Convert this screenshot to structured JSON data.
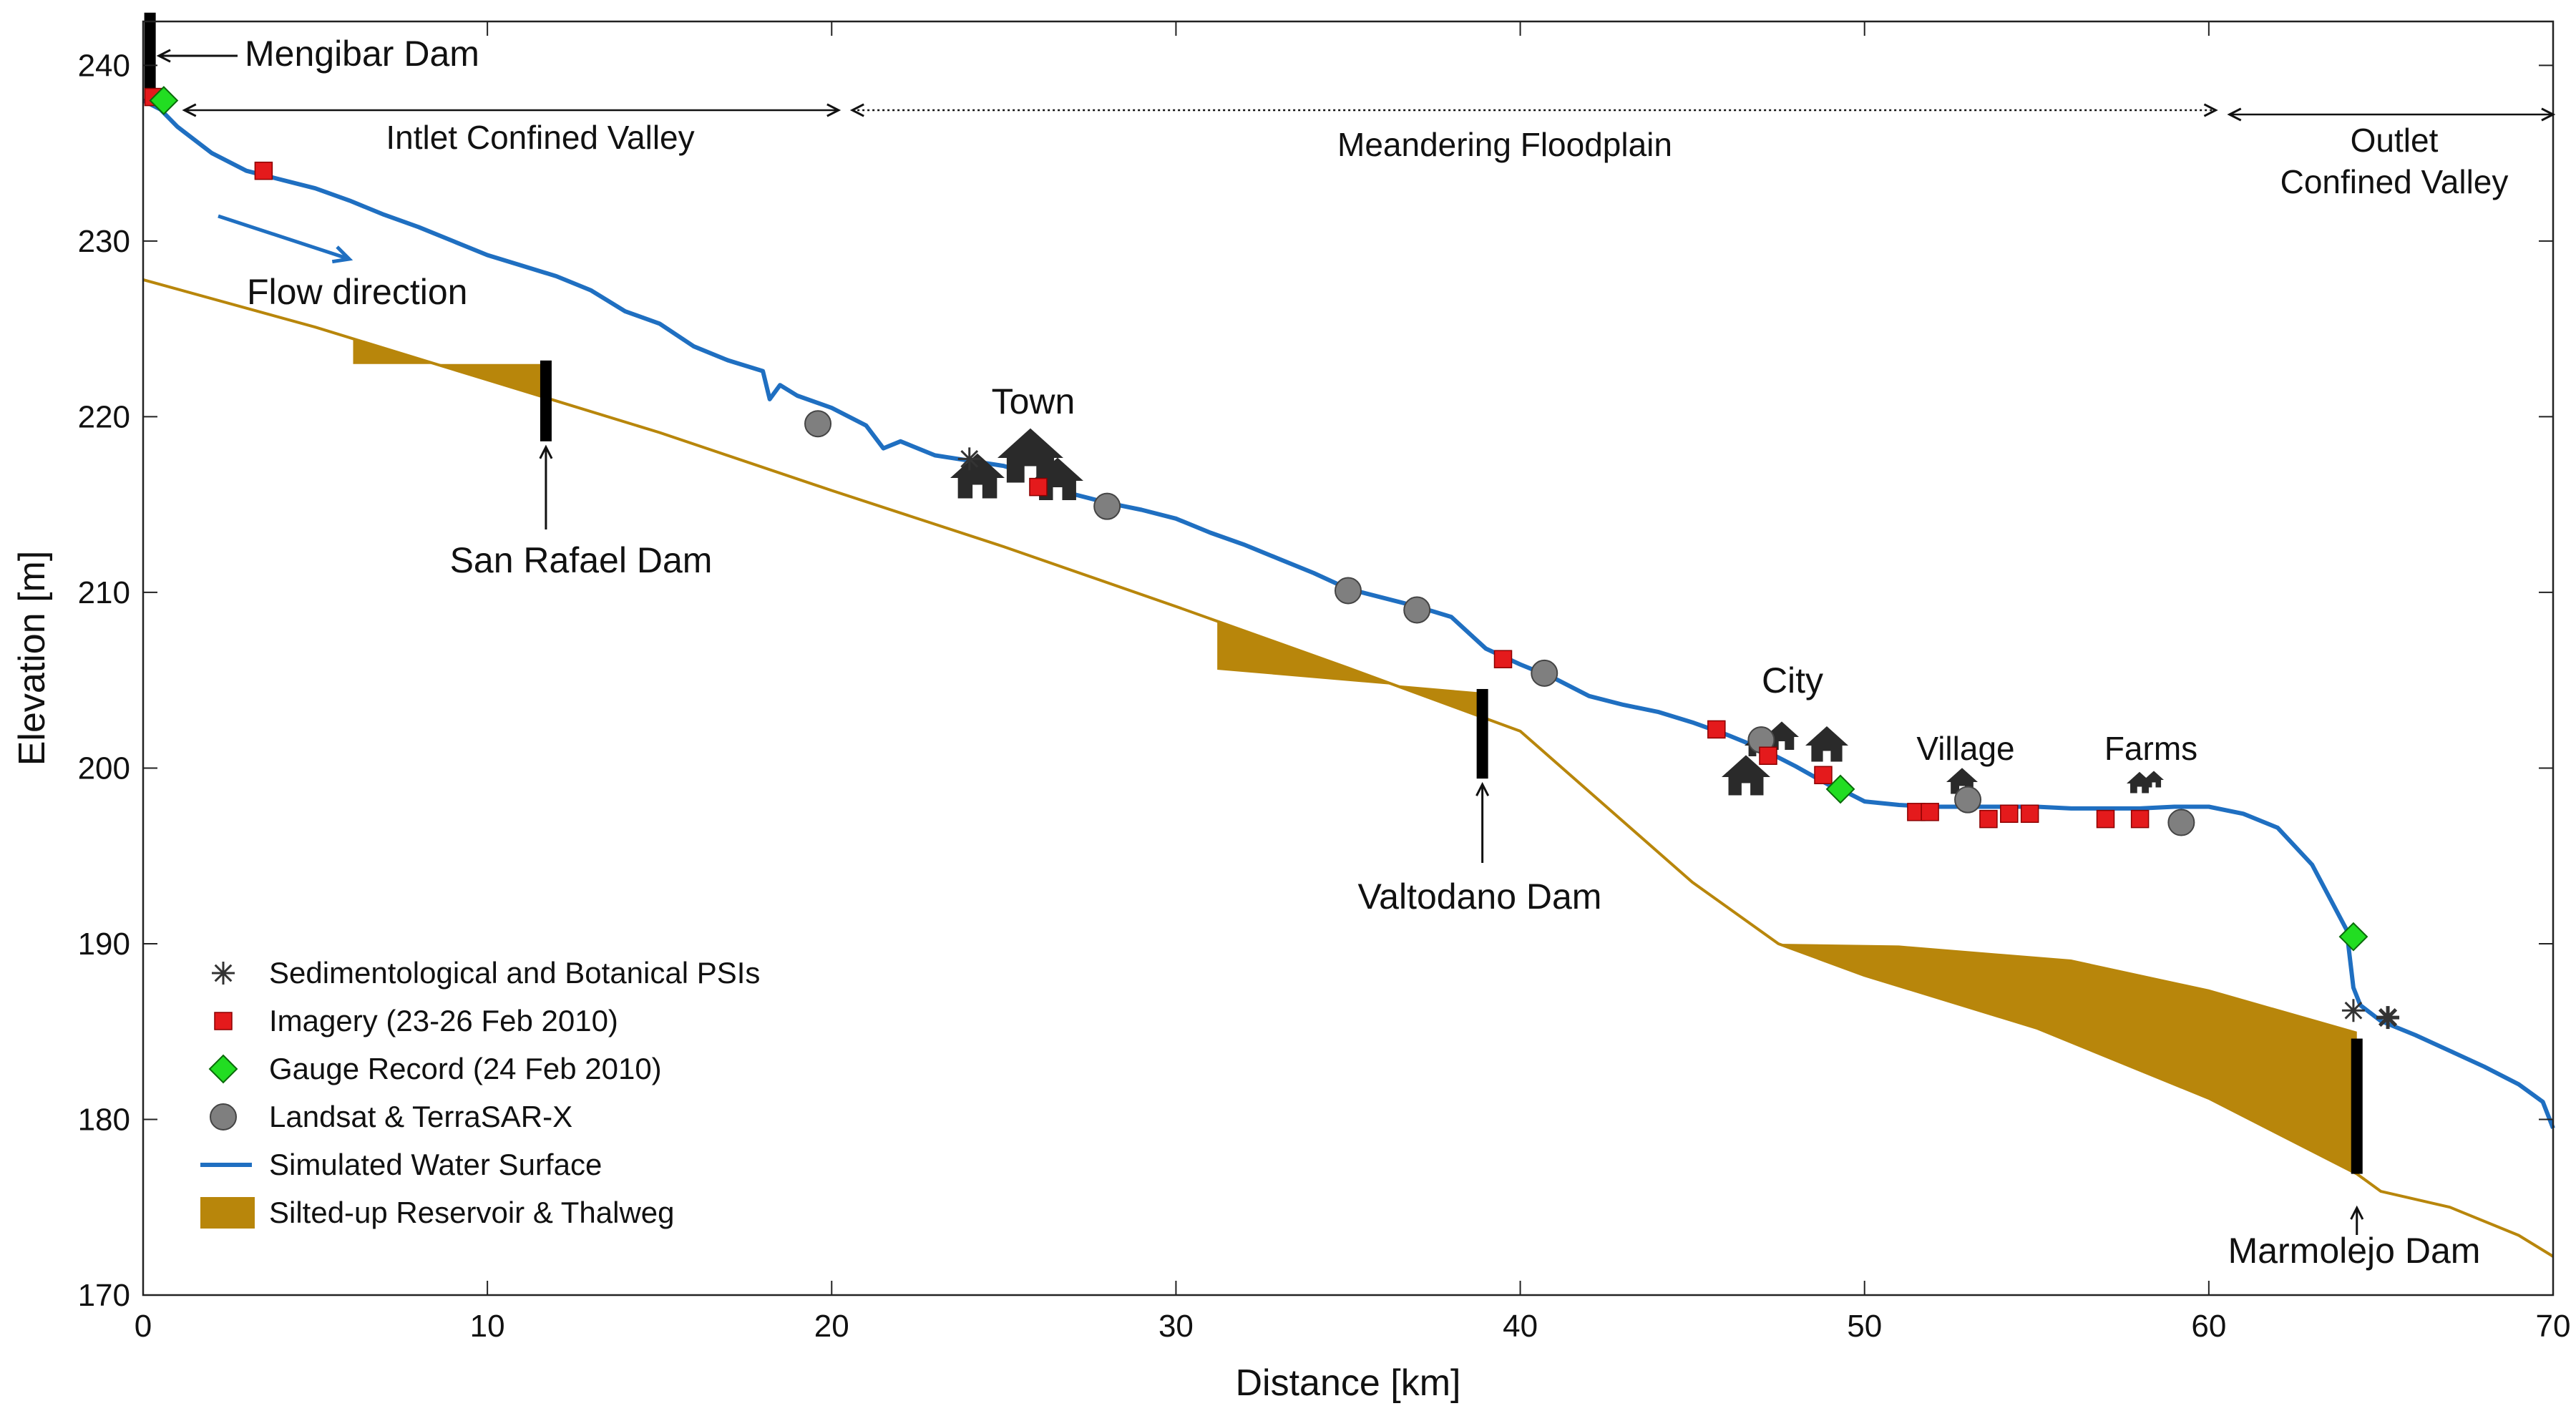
{
  "chart_data": {
    "type": "line",
    "xlabel": "Distance [km]",
    "ylabel": "Elevation [m]",
    "xlim": [
      0,
      70
    ],
    "ylim": [
      170,
      242.5
    ],
    "xticks": [
      0,
      10,
      20,
      30,
      40,
      50,
      60,
      70
    ],
    "yticks": [
      170,
      180,
      190,
      200,
      210,
      220,
      230,
      240
    ],
    "grid": false,
    "series": [
      {
        "name": "Simulated Water Surface",
        "color": "#1f6fc1",
        "x": [
          0,
          0.5,
          1,
          2,
          3,
          4,
          5,
          6,
          7,
          8,
          9,
          10,
          11,
          12,
          13,
          14,
          15,
          16,
          17,
          18,
          18.2,
          18.5,
          19,
          20,
          21,
          21.5,
          22,
          23,
          24,
          25,
          26,
          27,
          28,
          29,
          30,
          31,
          32,
          33,
          34,
          35,
          36,
          37,
          38,
          39,
          40,
          41,
          42,
          43,
          44,
          45,
          46,
          47,
          48,
          49,
          49.5,
          50,
          51,
          52,
          53,
          54,
          55,
          56,
          57,
          58,
          59,
          60,
          61,
          62,
          63,
          64,
          64.2,
          64.4,
          65,
          66,
          67,
          68,
          69,
          69.7,
          70
        ],
        "y": [
          238,
          237.5,
          236.5,
          235,
          234,
          233.5,
          233,
          232.3,
          231.5,
          230.8,
          230,
          229.2,
          228.6,
          228,
          227.2,
          226,
          225.3,
          224,
          223.2,
          222.6,
          221,
          221.8,
          221.2,
          220.5,
          219.5,
          218.2,
          218.6,
          217.8,
          217.5,
          217.2,
          216.6,
          215.6,
          215.1,
          214.7,
          214.2,
          213.4,
          212.7,
          211.9,
          211.1,
          210.2,
          209.7,
          209.2,
          208.6,
          206.8,
          205.9,
          205.1,
          204.1,
          203.6,
          203.2,
          202.6,
          201.9,
          201.1,
          200.1,
          199,
          198.6,
          198.1,
          197.9,
          197.8,
          197.8,
          197.8,
          197.8,
          197.7,
          197.7,
          197.7,
          197.8,
          197.8,
          197.4,
          196.6,
          194.5,
          190.8,
          187.5,
          186.5,
          185.6,
          184.8,
          183.9,
          183,
          182,
          181,
          179.5
        ]
      },
      {
        "name": "Thalweg",
        "color": "#b8860b",
        "x": [
          0,
          5,
          10,
          15,
          20,
          25,
          30,
          35,
          40,
          45,
          47.5,
          50,
          55,
          60,
          64.3,
          65,
          67,
          69,
          70
        ],
        "y": [
          227.8,
          225.1,
          222.1,
          219.1,
          215.8,
          212.6,
          209.2,
          205.7,
          202.1,
          193.5,
          190,
          188.2,
          185.2,
          181.2,
          176.9,
          175.9,
          175,
          173.4,
          172.2
        ]
      }
    ],
    "reservoirs": [
      {
        "name": "San Rafael reservoir",
        "points": [
          [
            6.1,
            223
          ],
          [
            11.7,
            223
          ],
          [
            11.7,
            218.6
          ]
        ]
      },
      {
        "name": "Valtodano reservoir",
        "points": [
          [
            31.2,
            205.6
          ],
          [
            38.9,
            204.3
          ],
          [
            38.9,
            199.4
          ]
        ]
      },
      {
        "name": "Marmolejo reservoir",
        "points": [
          [
            47.5,
            190
          ],
          [
            51,
            189.9
          ],
          [
            56,
            189.1
          ],
          [
            60,
            187.4
          ],
          [
            64.3,
            185
          ]
        ]
      }
    ],
    "dams": [
      {
        "name": "Mengibar Dam",
        "x": 0.2,
        "y_bottom": 238,
        "y_top": 243
      },
      {
        "name": "San Rafael Dam",
        "x": 11.7,
        "y_bottom": 218.6,
        "y_top": 223.2
      },
      {
        "name": "Valtodano Dam",
        "x": 38.9,
        "y_bottom": 199.4,
        "y_top": 204.5
      },
      {
        "name": "Marmolejo Dam",
        "x": 64.3,
        "y_bottom": 176.9,
        "y_top": 184.6
      }
    ],
    "points": {
      "psi": [
        [
          24,
          217.6
        ],
        [
          64.2,
          186.2
        ],
        [
          65.2,
          185.8
        ]
      ],
      "imagery": [
        [
          0.3,
          238.2
        ],
        [
          3.5,
          234
        ],
        [
          26,
          216
        ],
        [
          39.5,
          206.2
        ],
        [
          45.7,
          202.2
        ],
        [
          47.2,
          200.7
        ],
        [
          48.8,
          199.6
        ],
        [
          51.5,
          197.5
        ],
        [
          51.9,
          197.5
        ],
        [
          53.6,
          197.1
        ],
        [
          54.2,
          197.4
        ],
        [
          54.8,
          197.4
        ],
        [
          57,
          197.1
        ],
        [
          58,
          197.1
        ]
      ],
      "gauge": [
        [
          0.6,
          238
        ],
        [
          49.3,
          198.8
        ],
        [
          64.2,
          190.4
        ]
      ],
      "landsat": [
        [
          19.6,
          219.6
        ],
        [
          28,
          214.9
        ],
        [
          35,
          210.1
        ],
        [
          37,
          209
        ],
        [
          40.7,
          205.4
        ],
        [
          47,
          201.6
        ],
        [
          53,
          198.2
        ],
        [
          59.2,
          196.9
        ]
      ]
    },
    "reach_labels": [
      {
        "text": "Intlet Confined Valley",
        "x_start": 1.2,
        "x_end": 20.2
      },
      {
        "text": "Meandering Floodplain",
        "x_start": 20.6,
        "x_end": 60.2
      },
      {
        "text": "Outlet",
        "x_start": 60.6,
        "x_end": 70
      },
      {
        "text": "Confined Valley"
      }
    ],
    "annotations": {
      "flow": "Flow direction",
      "town": "Town",
      "city": "City",
      "village": "Village",
      "farms": "Farms"
    },
    "legend": {
      "position": "bottom-left",
      "entries": [
        {
          "label": "Sedimentological and Botanical PSIs",
          "marker": "asterisk"
        },
        {
          "label": "Imagery (23-26 Feb 2010)",
          "marker": "square",
          "color": "#e41a1c"
        },
        {
          "label": "Gauge Record (24 Feb 2010)",
          "marker": "diamond",
          "color": "#22dd22"
        },
        {
          "label": "Landsat & TerraSAR-X",
          "marker": "circle",
          "color": "#7f7f7f"
        },
        {
          "label": "Simulated Water Surface",
          "marker": "line",
          "color": "#1f6fc1"
        },
        {
          "label": "Silted-up Reservoir & Thalweg",
          "marker": "patch",
          "color": "#b8860b"
        }
      ]
    }
  }
}
